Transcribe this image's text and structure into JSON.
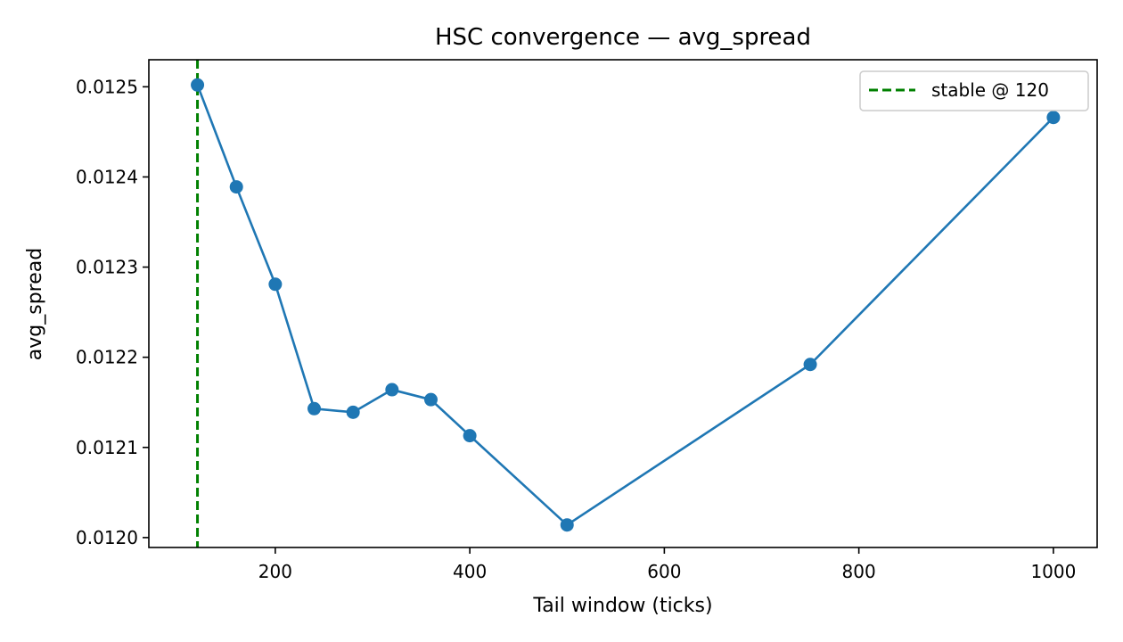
{
  "chart_data": {
    "type": "line",
    "title": "HSC convergence — avg_spread",
    "xlabel": "Tail window (ticks)",
    "ylabel": "avg_spread",
    "xlim": [
      70,
      1045
    ],
    "ylim": [
      0.011989,
      0.01253
    ],
    "xticks": [
      200,
      400,
      600,
      800,
      1000
    ],
    "xtick_labels": [
      "200",
      "400",
      "600",
      "800",
      "1000"
    ],
    "yticks": [
      0.012,
      0.0121,
      0.0122,
      0.0123,
      0.0124,
      0.0125
    ],
    "ytick_labels": [
      "0.0120",
      "0.0121",
      "0.0122",
      "0.0123",
      "0.0124",
      "0.0125"
    ],
    "grid": false,
    "legend_position": "top-right",
    "series": [
      {
        "values_x": [
          120,
          160,
          200,
          240,
          280,
          320,
          360,
          400,
          500,
          750,
          1000
        ],
        "values_y": [
          0.012502,
          0.012389,
          0.012281,
          0.012143,
          0.012139,
          0.012164,
          0.012153,
          0.012113,
          0.012014,
          0.012192,
          0.012466
        ],
        "color": "#1f77b4",
        "marker": "circle"
      }
    ],
    "reference_lines": [
      {
        "orientation": "vertical",
        "x": 120,
        "label": "stable @ 120",
        "color": "#008000",
        "style": "dashed"
      }
    ]
  }
}
